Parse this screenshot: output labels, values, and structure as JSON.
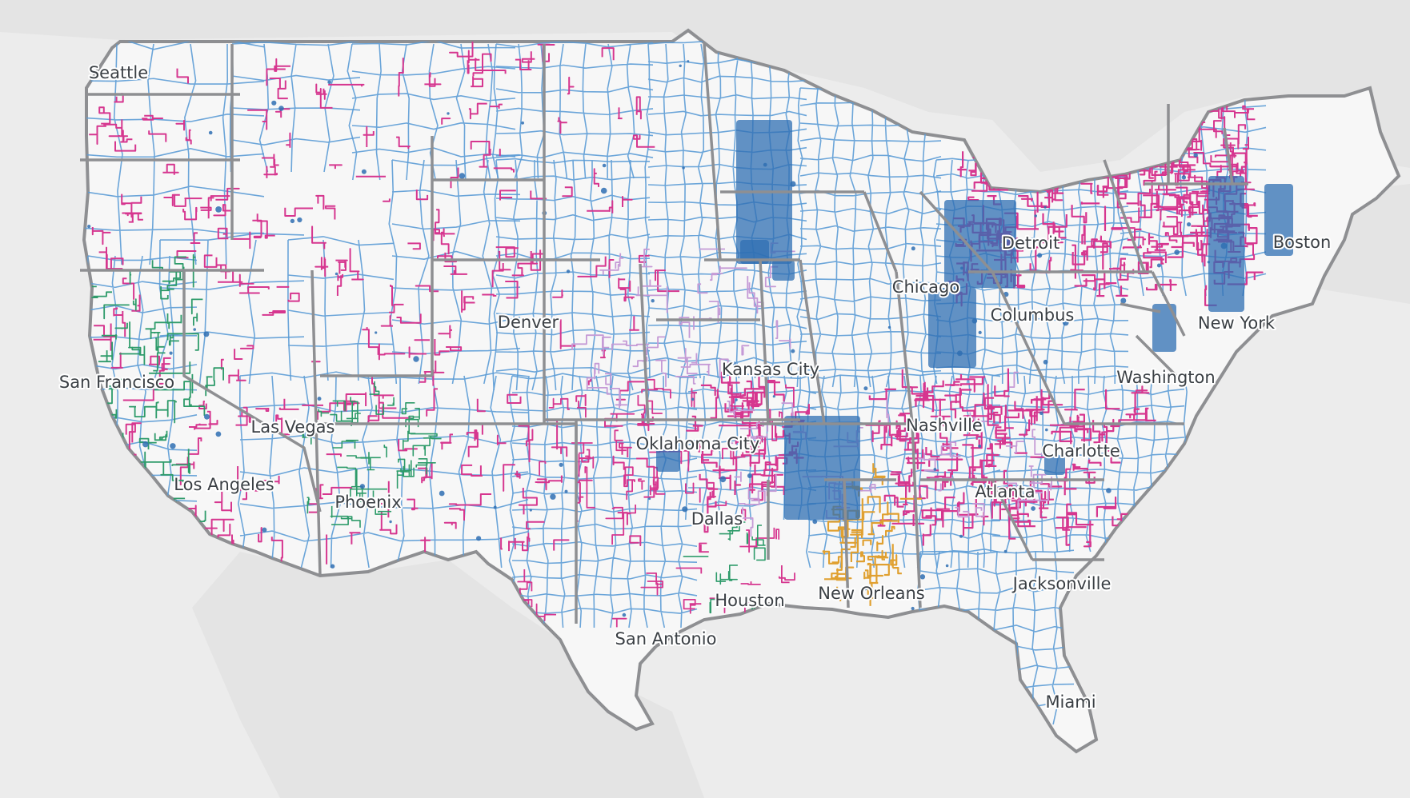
{
  "map": {
    "colors": {
      "ocean": "#ececec",
      "land_outside": "#e6e6e6",
      "land_us": "#f7f7f7",
      "state_border": "#8e8f92",
      "county_border": "#5b9bd5",
      "district_pink": "#d6368f",
      "district_green": "#2e9b6a",
      "district_orange": "#e0a030",
      "district_lavender": "#c59ad6",
      "fill_dark_blue": "#2f6fb3"
    },
    "layers": [
      "state-boundaries",
      "county-boundaries",
      "district-boundaries"
    ]
  },
  "cities": [
    {
      "id": "seattle",
      "name": "Seattle"
    },
    {
      "id": "san-francisco",
      "name": "San Francisco"
    },
    {
      "id": "las-vegas",
      "name": "Las Vegas"
    },
    {
      "id": "los-angeles",
      "name": "Los Angeles"
    },
    {
      "id": "phoenix",
      "name": "Phoenix"
    },
    {
      "id": "denver",
      "name": "Denver"
    },
    {
      "id": "kansas-city",
      "name": "Kansas City"
    },
    {
      "id": "oklahoma-city",
      "name": "Oklahoma City"
    },
    {
      "id": "dallas",
      "name": "Dallas"
    },
    {
      "id": "houston",
      "name": "Houston"
    },
    {
      "id": "san-antonio",
      "name": "San Antonio"
    },
    {
      "id": "new-orleans",
      "name": "New Orleans"
    },
    {
      "id": "nashville",
      "name": "Nashville"
    },
    {
      "id": "chicago",
      "name": "Chicago"
    },
    {
      "id": "detroit",
      "name": "Detroit"
    },
    {
      "id": "columbus",
      "name": "Columbus"
    },
    {
      "id": "atlanta",
      "name": "Atlanta"
    },
    {
      "id": "charlotte",
      "name": "Charlotte"
    },
    {
      "id": "jacksonville",
      "name": "Jacksonville"
    },
    {
      "id": "miami",
      "name": "Miami"
    },
    {
      "id": "washington",
      "name": "Washington"
    },
    {
      "id": "new-york",
      "name": "New York"
    },
    {
      "id": "boston",
      "name": "Boston"
    }
  ]
}
